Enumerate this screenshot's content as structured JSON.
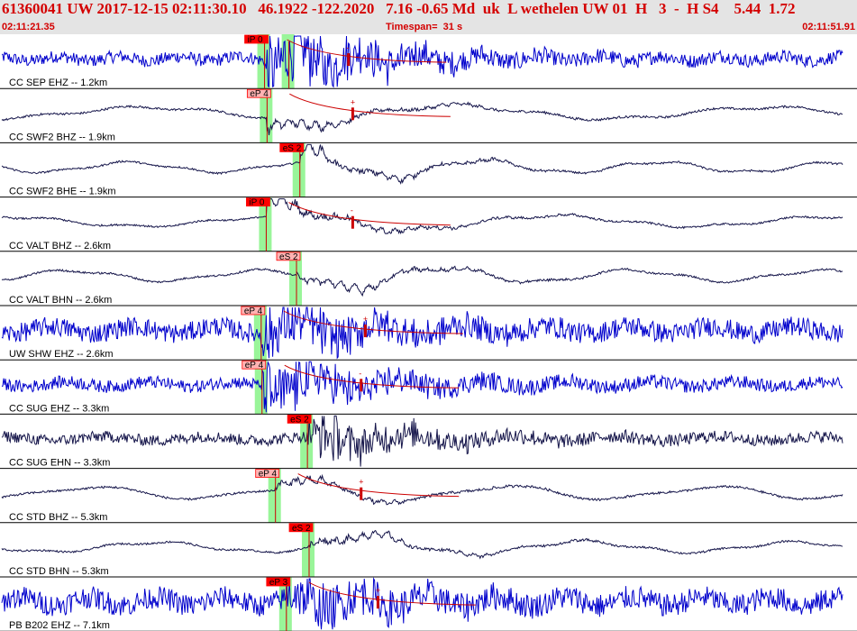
{
  "header": {
    "title": "61360041 UW 2017-12-15 02:11:30.10   46.1922 -122.2020   7.16 -0.65 Md  uk  L wethelen UW 01  H   3  -  H S4    5.44  1.72",
    "time_start": "02:11:21.35",
    "time_end": "02:11:51.91",
    "timespan": "Timespan=  31 s"
  },
  "colors": {
    "header_bg": "#e4e4e4",
    "header_text": "#d40000",
    "trace_blue": "#0000cc",
    "trace_dark": "#15154a",
    "pick_box": "#ff0000",
    "pick_box_light": "#ffb3b3",
    "pick_band": "#99f599",
    "pick_line": "#cc0000"
  },
  "traces": [
    {
      "label": "CC SEP EHZ -- 1.2km",
      "style": "noisy",
      "color": "blue",
      "amp": 0.45,
      "event_amp": 2.4,
      "picks": [
        {
          "text": "iP 0",
          "t": 0.3125,
          "type": "P",
          "filled": true
        },
        {
          "text": "",
          "t": 0.3415,
          "type": "S",
          "filled": true
        }
      ],
      "coda": {
        "t": 0.325,
        "sign": "-"
      }
    },
    {
      "label": "CC SWF2 BHZ -- 1.9km",
      "style": "wave",
      "color": "dark",
      "amp": 0.35,
      "event_amp": 0.7,
      "picks": [
        {
          "text": "eP 4",
          "t": 0.3155,
          "type": "P",
          "filled": false
        }
      ],
      "coda": {
        "t": 0.33,
        "sign": "+"
      }
    },
    {
      "label": "CC SWF2 BHE -- 1.9km",
      "style": "wave",
      "color": "dark",
      "amp": 0.3,
      "event_amp": 0.8,
      "picks": [
        {
          "text": "eS 2",
          "t": 0.3545,
          "type": "S",
          "filled": true
        }
      ],
      "coda": null
    },
    {
      "label": "CC VALT BHZ -- 2.6km",
      "style": "wave",
      "color": "dark",
      "amp": 0.3,
      "event_amp": 1.0,
      "picks": [
        {
          "text": "iP 0",
          "t": 0.3145,
          "type": "P",
          "filled": true
        }
      ],
      "coda": {
        "t": 0.33,
        "sign": "-"
      }
    },
    {
      "label": "CC VALT BHN -- 2.6km",
      "style": "wave",
      "color": "dark",
      "amp": 0.32,
      "event_amp": 0.8,
      "picks": [
        {
          "text": "eS 2",
          "t": 0.3505,
          "type": "S",
          "filled": false
        }
      ],
      "coda": null
    },
    {
      "label": "UW SHW EHZ -- 2.6km",
      "style": "noisy",
      "color": "blue",
      "amp": 0.7,
      "event_amp": 1.5,
      "picks": [
        {
          "text": "eP 4",
          "t": 0.3085,
          "type": "P",
          "filled": false
        }
      ],
      "coda": {
        "t": 0.345,
        "sign": "+"
      }
    },
    {
      "label": "CC SUG EHZ -- 3.3km",
      "style": "noisy",
      "color": "blue",
      "amp": 0.45,
      "event_amp": 1.8,
      "picks": [
        {
          "text": "eP 4",
          "t": 0.3095,
          "type": "P",
          "filled": false
        }
      ],
      "coda": {
        "t": 0.34,
        "sign": "-"
      }
    },
    {
      "label": "CC SUG EHN -- 3.3km",
      "style": "noisy",
      "color": "dark",
      "amp": 0.4,
      "event_amp": 1.4,
      "picks": [
        {
          "text": "eS 2",
          "t": 0.3635,
          "type": "S",
          "filled": true
        }
      ],
      "coda": null
    },
    {
      "label": "CC STD BHZ -- 5.3km",
      "style": "wave",
      "color": "dark",
      "amp": 0.35,
      "event_amp": 0.6,
      "picks": [
        {
          "text": "eP 4",
          "t": 0.3255,
          "type": "P",
          "filled": false
        }
      ],
      "coda": {
        "t": 0.34,
        "sign": "+"
      }
    },
    {
      "label": "CC STD BHN -- 5.3km",
      "style": "wave",
      "color": "dark",
      "amp": 0.3,
      "event_amp": 0.8,
      "picks": [
        {
          "text": "eS 2",
          "t": 0.3655,
          "type": "S",
          "filled": true
        }
      ],
      "coda": null
    },
    {
      "label": "PB B202 EHZ -- 7.1km",
      "style": "noisy",
      "color": "blue",
      "amp": 0.8,
      "event_amp": 1.3,
      "picks": [
        {
          "text": "eP 3",
          "t": 0.3385,
          "type": "P",
          "filled": true
        }
      ],
      "coda": {
        "t": 0.36,
        "sign": "+"
      }
    }
  ]
}
